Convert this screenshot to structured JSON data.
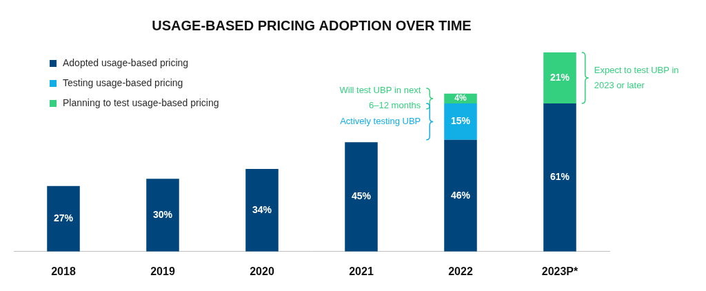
{
  "chart_data": {
    "type": "bar",
    "title": "USAGE-BASED PRICING ADOPTION OVER TIME",
    "categories": [
      "2018",
      "2019",
      "2020",
      "2021",
      "2022",
      "2023P*"
    ],
    "series": [
      {
        "name": "Adopted usage-based pricing",
        "color": "#00457c",
        "values": [
          27,
          30,
          34,
          45,
          46,
          61
        ],
        "value_labels": [
          "27%",
          "30%",
          "34%",
          "45%",
          "46%",
          "61%"
        ]
      },
      {
        "name": "Testing usage-based pricing",
        "color": "#12aee6",
        "values": [
          null,
          null,
          null,
          null,
          15,
          null
        ],
        "value_labels": [
          null,
          null,
          null,
          null,
          "15%",
          null
        ]
      },
      {
        "name": "Planning to test usage-based pricing",
        "color": "#35d07f",
        "values": [
          null,
          null,
          null,
          null,
          4,
          21
        ],
        "value_labels": [
          null,
          null,
          null,
          null,
          "4%",
          "21%"
        ]
      }
    ],
    "annotations": [
      {
        "text": [
          "Will test UBP in next",
          "6–12 months"
        ],
        "category": "2022",
        "series": "Planning to test usage-based pricing"
      },
      {
        "text": [
          "Actively testing UBP"
        ],
        "category": "2022",
        "series": "Testing usage-based pricing"
      },
      {
        "text": [
          "Expect to test UBP in",
          "2023 or later"
        ],
        "category": "2023P*",
        "series": "Planning to test usage-based pricing"
      }
    ],
    "stacked": true,
    "data_labels": true,
    "legend": "upper left",
    "grid": false,
    "tick_labels": "x",
    "ylim": [
      0,
      82
    ]
  }
}
